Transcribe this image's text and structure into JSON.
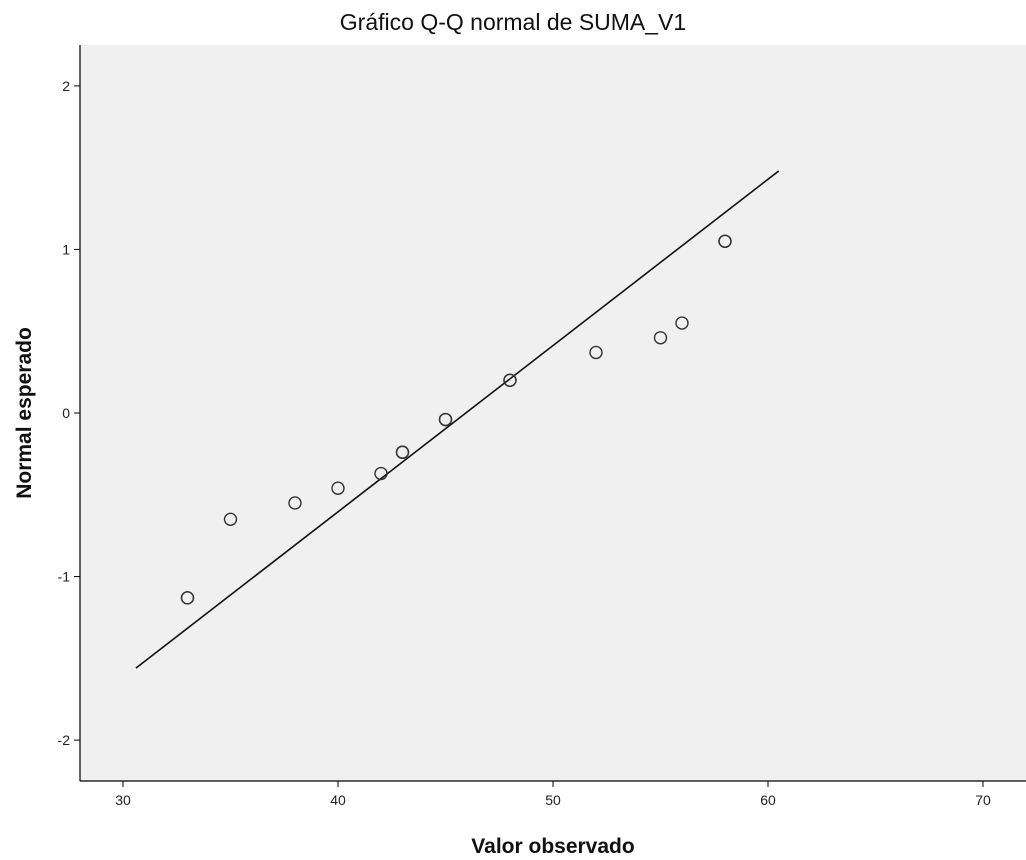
{
  "chart_data": {
    "type": "scatter",
    "title": "Gráfico Q-Q normal de SUMA_V1",
    "xlabel": "Valor observado",
    "ylabel": "Normal esperado",
    "xlim": [
      28,
      72
    ],
    "ylim": [
      -2.25,
      2.25
    ],
    "x_ticks": [
      30,
      40,
      50,
      60,
      70
    ],
    "y_ticks": [
      -2,
      -1,
      0,
      1,
      2
    ],
    "x_tick_labels": [
      "30",
      "40",
      "50",
      "60",
      "70"
    ],
    "y_tick_labels": [
      "-2",
      "-1",
      "0",
      "1",
      "2"
    ],
    "points": [
      {
        "x": 33,
        "y": -1.13
      },
      {
        "x": 33,
        "y": -1.13
      },
      {
        "x": 35,
        "y": -0.65
      },
      {
        "x": 38,
        "y": -0.55
      },
      {
        "x": 40,
        "y": -0.46
      },
      {
        "x": 42,
        "y": -0.37
      },
      {
        "x": 43,
        "y": -0.24
      },
      {
        "x": 43,
        "y": -0.24
      },
      {
        "x": 45,
        "y": -0.04
      },
      {
        "x": 45,
        "y": -0.04
      },
      {
        "x": 48,
        "y": 0.2
      },
      {
        "x": 48,
        "y": 0.2
      },
      {
        "x": 52,
        "y": 0.37
      },
      {
        "x": 55,
        "y": 0.46
      },
      {
        "x": 56,
        "y": 0.55
      },
      {
        "x": 58,
        "y": 1.05
      },
      {
        "x": 58,
        "y": 1.05
      }
    ],
    "reference_line": {
      "x": [
        30.6,
        60.5
      ],
      "y": [
        -1.56,
        1.48
      ]
    },
    "grid": false,
    "legend": "none",
    "colors": {
      "plot_background": "#f0f0f0",
      "marker": "#333333",
      "line": "#111111",
      "axis": "#000000"
    }
  }
}
